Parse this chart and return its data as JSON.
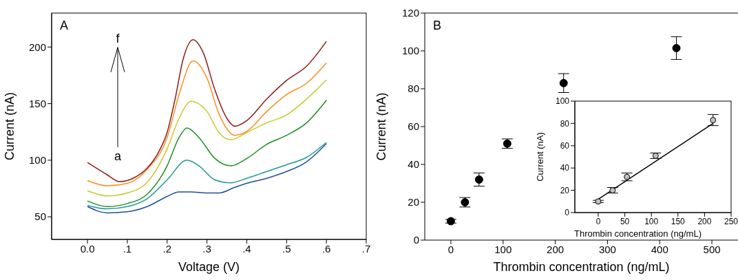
{
  "chart_data": [
    {
      "type": "line",
      "xlabel": "Voltage (V)",
      "ylabel": "Current (nA)",
      "xlim": [
        -0.09,
        0.7
      ],
      "xticks": [
        {
          "value": 0,
          "label": "0.0"
        },
        {
          "value": 0.1,
          "label": ".1"
        },
        {
          "value": 0.2,
          "label": ".2"
        },
        {
          "value": 0.3,
          "label": ".3"
        },
        {
          "value": 0.4,
          "label": ".4"
        },
        {
          "value": 0.5,
          "label": ".5"
        },
        {
          "value": 0.6,
          "label": ".6"
        },
        {
          "value": 0.7,
          "label": ".7"
        }
      ],
      "ylim": [
        30,
        230
      ],
      "yticks": [
        50,
        100,
        150,
        200
      ],
      "grid": false,
      "marker": "none",
      "annotations": [
        "A",
        "a",
        "f"
      ],
      "series": [
        {
          "color": "#1f4e9c",
          "x": [
            0,
            0.05,
            0.1,
            0.15,
            0.2,
            0.23,
            0.26,
            0.3,
            0.33,
            0.37,
            0.4,
            0.45,
            0.5,
            0.55,
            0.6
          ],
          "values": [
            59,
            53.4,
            54.4,
            59,
            68,
            72,
            72,
            71,
            71,
            76,
            79.5,
            84,
            90,
            98.5,
            114.6
          ]
        },
        {
          "color": "#1a9a9a",
          "x": [
            0,
            0.05,
            0.1,
            0.15,
            0.2,
            0.25,
            0.28,
            0.32,
            0.36,
            0.4,
            0.45,
            0.5,
            0.55,
            0.6
          ],
          "values": [
            60,
            57,
            59,
            66,
            82.6,
            100,
            95,
            82.6,
            80,
            84,
            90,
            96,
            102.5,
            115.7
          ]
        },
        {
          "color": "#1f8c1f",
          "x": [
            0,
            0.05,
            0.1,
            0.15,
            0.2,
            0.23,
            0.25,
            0.28,
            0.32,
            0.36,
            0.4,
            0.45,
            0.5,
            0.55,
            0.6
          ],
          "values": [
            64,
            59,
            61.7,
            70,
            95,
            120,
            128.5,
            120,
            101.5,
            95,
            101.5,
            114,
            122,
            133,
            153
          ]
        },
        {
          "color": "#c8c828",
          "x": [
            0,
            0.05,
            0.1,
            0.15,
            0.2,
            0.23,
            0.26,
            0.3,
            0.33,
            0.36,
            0.4,
            0.45,
            0.5,
            0.55,
            0.6
          ],
          "values": [
            73,
            68.4,
            71,
            80.5,
            110,
            137,
            152,
            143,
            124.5,
            118,
            124.5,
            133,
            140,
            154,
            171
          ]
        },
        {
          "color": "#ff8c1a",
          "x": [
            0,
            0.05,
            0.1,
            0.15,
            0.2,
            0.23,
            0.265,
            0.3,
            0.33,
            0.37,
            0.4,
            0.45,
            0.5,
            0.55,
            0.6
          ],
          "values": [
            82,
            77.4,
            79.5,
            92,
            120,
            158,
            187.7,
            172.6,
            141,
            122,
            125.5,
            143,
            158,
            168,
            186
          ]
        },
        {
          "color": "#8b1a1a",
          "x": [
            0,
            0.05,
            0.08,
            0.12,
            0.15,
            0.18,
            0.2,
            0.22,
            0.24,
            0.265,
            0.29,
            0.32,
            0.35,
            0.37,
            0.4,
            0.45,
            0.5,
            0.55,
            0.6
          ],
          "values": [
            98,
            87,
            81,
            85,
            93,
            108,
            124.5,
            154,
            189,
            206.5,
            195.6,
            162,
            137,
            130,
            135,
            154,
            170.5,
            183,
            205
          ]
        }
      ]
    },
    {
      "type": "scatter",
      "xlabel": "Thrombin concentration (ng/mL)",
      "ylabel": "Current (nA)",
      "xlim": [
        -50,
        550
      ],
      "xticks": [
        0,
        100,
        200,
        300,
        400,
        500
      ],
      "ylim": [
        0,
        120
      ],
      "yticks": [
        0,
        20,
        40,
        60,
        80,
        100,
        120
      ],
      "grid": false,
      "marker": "circle",
      "annotations": [
        "B"
      ],
      "color": "#000000",
      "x": [
        0,
        27,
        54,
        108,
        216,
        432
      ],
      "values": [
        10,
        20,
        32,
        51,
        83,
        101.5
      ],
      "errors": [
        1,
        2.5,
        3.5,
        2.5,
        5,
        6
      ]
    },
    {
      "type": "scatter",
      "xlabel": "Thrombin concentration (ng/mL)",
      "ylabel": "Current (nA)",
      "xlim": [
        -44,
        250
      ],
      "xticks": [
        0,
        50,
        100,
        150,
        200,
        250
      ],
      "ylim": [
        0,
        100
      ],
      "yticks": [
        0,
        20,
        40,
        60,
        80,
        100
      ],
      "grid": false,
      "marker": "circle",
      "series": [
        {
          "color": "#c0c0c0",
          "x": [
            0,
            27,
            54,
            108,
            216
          ],
          "values": [
            10,
            20,
            32,
            51,
            83
          ],
          "errors": [
            1,
            2.5,
            3.5,
            2.5,
            5
          ]
        },
        {
          "type": "line",
          "color": "#000000",
          "marker": "none",
          "x": [
            0,
            216
          ],
          "values": [
            12,
            80
          ]
        }
      ]
    }
  ]
}
